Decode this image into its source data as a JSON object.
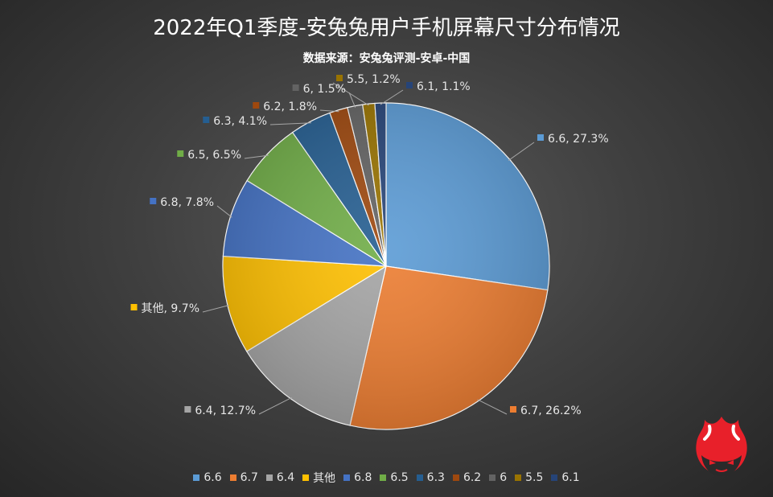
{
  "chart_data": {
    "type": "pie",
    "title": "2022年Q1季度-安兔兔用户手机屏幕尺寸分布情况",
    "subtitle": "数据来源：安兔兔评测-安卓-中国",
    "legend_position": "bottom",
    "slices": [
      {
        "name": "6.6",
        "value": 27.3,
        "label": "6.6, 27.3%",
        "color": "#5b9bd5"
      },
      {
        "name": "6.7",
        "value": 26.2,
        "label": "6.7, 26.2%",
        "color": "#ed7d31"
      },
      {
        "name": "6.4",
        "value": 12.7,
        "label": "6.4, 12.7%",
        "color": "#a5a5a5"
      },
      {
        "name": "其他",
        "value": 9.7,
        "label": "其他, 9.7%",
        "color": "#ffc000"
      },
      {
        "name": "6.8",
        "value": 7.8,
        "label": "6.8, 7.8%",
        "color": "#4472c4"
      },
      {
        "name": "6.5",
        "value": 6.5,
        "label": "6.5, 6.5%",
        "color": "#70ad47"
      },
      {
        "name": "6.3",
        "value": 4.1,
        "label": "6.3, 4.1%",
        "color": "#255e91"
      },
      {
        "name": "6.2",
        "value": 1.8,
        "label": "6.2, 1.8%",
        "color": "#9e480e"
      },
      {
        "name": "6",
        "value": 1.5,
        "label": "6, 1.5%",
        "color": "#636363"
      },
      {
        "name": "5.5",
        "value": 1.2,
        "label": "5.5, 1.2%",
        "color": "#997300"
      },
      {
        "name": "6.1",
        "value": 1.1,
        "label": "6.1, 1.1%",
        "color": "#264478"
      }
    ]
  },
  "logo": {
    "icon": "antutu-flame-logo-icon",
    "color": "#e8202a"
  }
}
